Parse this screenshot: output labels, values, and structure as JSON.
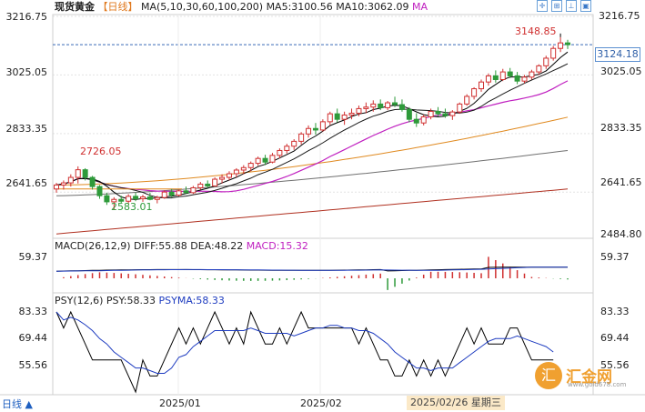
{
  "header": {
    "symbol": "现货黄金",
    "period": "【日线】",
    "ma_label": "MA(5,10,30,60,100,200)",
    "ma5": "MA5:3100.56",
    "ma10": "MA10:3062.09",
    "ma_extra": "MA"
  },
  "toolbar": {
    "icons": [
      "crosshair-icon",
      "zoom-in-icon",
      "pin-icon",
      "fullscreen-icon"
    ]
  },
  "price_panel": {
    "right_ticks": [
      "3216.75",
      "3025.05",
      "2833.35",
      "2641.65",
      "2484.80"
    ],
    "left_ticks": [
      "3216.75",
      "3025.05",
      "2833.35",
      "2641.65"
    ],
    "current_price": "3124.18",
    "high_label": "3148.85",
    "early_high_label": "2726.05",
    "low_label": "2583.01"
  },
  "macd_panel": {
    "title": "MACD(26,12,9)",
    "diff": "DIFF:55.88",
    "dea": "DEA:48.22",
    "macd": "MACD:15.32",
    "tick": "59.37"
  },
  "psy_panel": {
    "title": "PSY(12,6)",
    "psy": "PSY:58.33",
    "psyma": "PSYMA:58.33",
    "ticks": [
      "83.33",
      "69.44",
      "55.56"
    ]
  },
  "footer": {
    "period_button": "日线 ▲",
    "dates": [
      "2025/01",
      "2025/02"
    ],
    "hover_date": "2025/02/26 星期三"
  },
  "watermark": {
    "logo": "汇",
    "text": "汇金网",
    "url": "www.gold678.com"
  },
  "colors": {
    "up": "#d03030",
    "down": "#2e9a3a",
    "ma5": "#000000",
    "ma10": "#1a1a1a",
    "ma30": "#c020c0",
    "ma60": "#e08a20",
    "ma100": "#707070",
    "ma200": "#b03020"
  },
  "chart_data": {
    "type": "candlestick",
    "y_range": [
      2484.8,
      3216.75
    ],
    "candles": [
      {
        "o": 2652,
        "h": 2672,
        "l": 2640,
        "c": 2665
      },
      {
        "o": 2665,
        "h": 2680,
        "l": 2650,
        "c": 2672
      },
      {
        "o": 2672,
        "h": 2700,
        "l": 2660,
        "c": 2690
      },
      {
        "o": 2690,
        "h": 2726.05,
        "l": 2670,
        "c": 2715
      },
      {
        "o": 2715,
        "h": 2720,
        "l": 2680,
        "c": 2690
      },
      {
        "o": 2690,
        "h": 2695,
        "l": 2650,
        "c": 2660
      },
      {
        "o": 2660,
        "h": 2665,
        "l": 2620,
        "c": 2630
      },
      {
        "o": 2630,
        "h": 2640,
        "l": 2600,
        "c": 2610
      },
      {
        "o": 2610,
        "h": 2625,
        "l": 2583.01,
        "c": 2618
      },
      {
        "o": 2618,
        "h": 2630,
        "l": 2605,
        "c": 2612
      },
      {
        "o": 2612,
        "h": 2635,
        "l": 2605,
        "c": 2628
      },
      {
        "o": 2628,
        "h": 2640,
        "l": 2612,
        "c": 2620
      },
      {
        "o": 2620,
        "h": 2633,
        "l": 2610,
        "c": 2626
      },
      {
        "o": 2626,
        "h": 2640,
        "l": 2615,
        "c": 2618
      },
      {
        "o": 2618,
        "h": 2630,
        "l": 2605,
        "c": 2624
      },
      {
        "o": 2624,
        "h": 2648,
        "l": 2620,
        "c": 2642
      },
      {
        "o": 2642,
        "h": 2652,
        "l": 2625,
        "c": 2632
      },
      {
        "o": 2632,
        "h": 2650,
        "l": 2628,
        "c": 2646
      },
      {
        "o": 2646,
        "h": 2660,
        "l": 2636,
        "c": 2640
      },
      {
        "o": 2640,
        "h": 2662,
        "l": 2636,
        "c": 2656
      },
      {
        "o": 2656,
        "h": 2675,
        "l": 2650,
        "c": 2668
      },
      {
        "o": 2668,
        "h": 2680,
        "l": 2655,
        "c": 2662
      },
      {
        "o": 2662,
        "h": 2690,
        "l": 2660,
        "c": 2684
      },
      {
        "o": 2684,
        "h": 2700,
        "l": 2670,
        "c": 2690
      },
      {
        "o": 2690,
        "h": 2710,
        "l": 2680,
        "c": 2702
      },
      {
        "o": 2702,
        "h": 2720,
        "l": 2690,
        "c": 2714
      },
      {
        "o": 2714,
        "h": 2730,
        "l": 2700,
        "c": 2722
      },
      {
        "o": 2722,
        "h": 2742,
        "l": 2710,
        "c": 2736
      },
      {
        "o": 2736,
        "h": 2758,
        "l": 2728,
        "c": 2752
      },
      {
        "o": 2752,
        "h": 2764,
        "l": 2730,
        "c": 2740
      },
      {
        "o": 2740,
        "h": 2770,
        "l": 2736,
        "c": 2762
      },
      {
        "o": 2762,
        "h": 2785,
        "l": 2752,
        "c": 2778
      },
      {
        "o": 2778,
        "h": 2800,
        "l": 2768,
        "c": 2792
      },
      {
        "o": 2792,
        "h": 2815,
        "l": 2780,
        "c": 2808
      },
      {
        "o": 2808,
        "h": 2838,
        "l": 2798,
        "c": 2832
      },
      {
        "o": 2832,
        "h": 2860,
        "l": 2820,
        "c": 2850
      },
      {
        "o": 2850,
        "h": 2868,
        "l": 2830,
        "c": 2845
      },
      {
        "o": 2845,
        "h": 2880,
        "l": 2840,
        "c": 2872
      },
      {
        "o": 2872,
        "h": 2905,
        "l": 2862,
        "c": 2898
      },
      {
        "o": 2898,
        "h": 2915,
        "l": 2870,
        "c": 2880
      },
      {
        "o": 2880,
        "h": 2905,
        "l": 2862,
        "c": 2894
      },
      {
        "o": 2894,
        "h": 2915,
        "l": 2880,
        "c": 2900
      },
      {
        "o": 2900,
        "h": 2925,
        "l": 2890,
        "c": 2915
      },
      {
        "o": 2915,
        "h": 2935,
        "l": 2900,
        "c": 2920
      },
      {
        "o": 2920,
        "h": 2942,
        "l": 2905,
        "c": 2930
      },
      {
        "o": 2930,
        "h": 2945,
        "l": 2910,
        "c": 2918
      },
      {
        "o": 2918,
        "h": 2940,
        "l": 2910,
        "c": 2934
      },
      {
        "o": 2934,
        "h": 2954,
        "l": 2920,
        "c": 2928
      },
      {
        "o": 2928,
        "h": 2945,
        "l": 2905,
        "c": 2912
      },
      {
        "o": 2912,
        "h": 2920,
        "l": 2870,
        "c": 2880
      },
      {
        "o": 2880,
        "h": 2900,
        "l": 2855,
        "c": 2868
      },
      {
        "o": 2868,
        "h": 2895,
        "l": 2860,
        "c": 2888
      },
      {
        "o": 2888,
        "h": 2915,
        "l": 2880,
        "c": 2906
      },
      {
        "o": 2906,
        "h": 2920,
        "l": 2890,
        "c": 2898
      },
      {
        "o": 2898,
        "h": 2915,
        "l": 2885,
        "c": 2892
      },
      {
        "o": 2892,
        "h": 2910,
        "l": 2878,
        "c": 2904
      },
      {
        "o": 2904,
        "h": 2935,
        "l": 2898,
        "c": 2930
      },
      {
        "o": 2930,
        "h": 2962,
        "l": 2924,
        "c": 2955
      },
      {
        "o": 2955,
        "h": 2985,
        "l": 2945,
        "c": 2980
      },
      {
        "o": 2980,
        "h": 3010,
        "l": 2970,
        "c": 3002
      },
      {
        "o": 3002,
        "h": 3030,
        "l": 2990,
        "c": 3022
      },
      {
        "o": 3022,
        "h": 3040,
        "l": 3000,
        "c": 3010
      },
      {
        "o": 3010,
        "h": 3045,
        "l": 3005,
        "c": 3035
      },
      {
        "o": 3035,
        "h": 3048,
        "l": 3015,
        "c": 3022
      },
      {
        "o": 3022,
        "h": 3035,
        "l": 2995,
        "c": 3005
      },
      {
        "o": 3005,
        "h": 3025,
        "l": 2998,
        "c": 3018
      },
      {
        "o": 3018,
        "h": 3042,
        "l": 3010,
        "c": 3035
      },
      {
        "o": 3035,
        "h": 3060,
        "l": 3025,
        "c": 3055
      },
      {
        "o": 3055,
        "h": 3088,
        "l": 3045,
        "c": 3080
      },
      {
        "o": 3080,
        "h": 3120,
        "l": 3072,
        "c": 3112
      },
      {
        "o": 3112,
        "h": 3148.85,
        "l": 3100,
        "c": 3130
      },
      {
        "o": 3130,
        "h": 3140,
        "l": 3110,
        "c": 3124.18
      }
    ]
  }
}
